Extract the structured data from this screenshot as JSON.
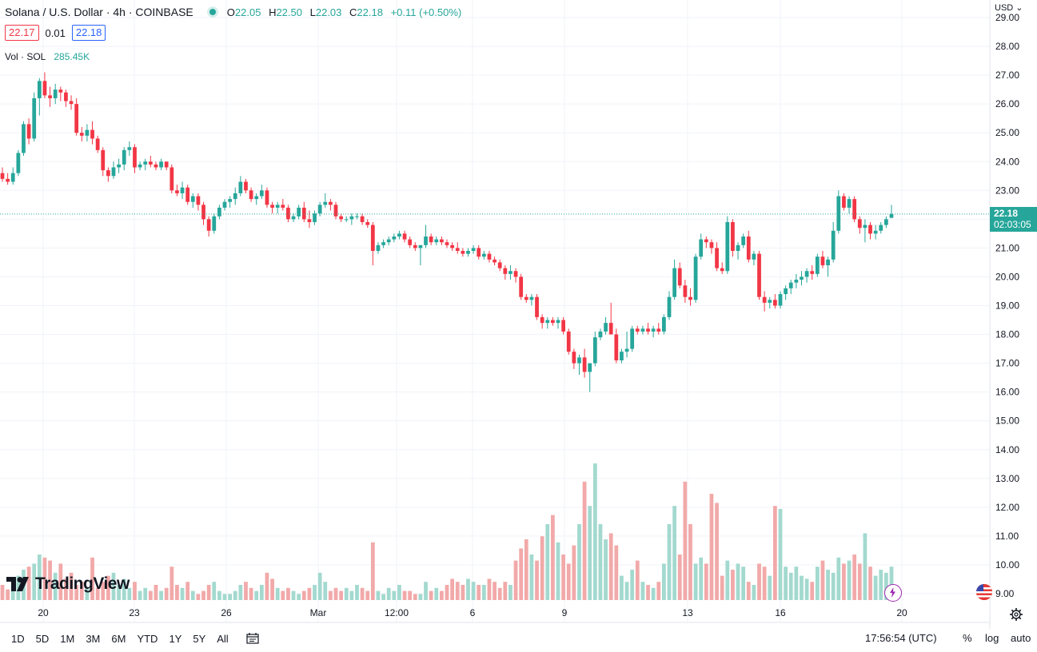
{
  "header": {
    "title": "Solana / U.S. Dollar · 4h · COINBASE",
    "ohlc": {
      "o_label": "O",
      "o": "22.05",
      "h_label": "H",
      "h": "22.50",
      "l_label": "L",
      "l": "22.03",
      "c_label": "C",
      "c": "22.18",
      "change": "+0.11 (+0.50%)"
    },
    "bid": "22.17",
    "spread": "0.01",
    "ask": "22.18",
    "vol_label": "Vol · SOL",
    "vol_value": "285.45K"
  },
  "currency": "USD",
  "last_price": {
    "price": "22.18",
    "countdown": "02:03:05"
  },
  "logo_text": "TradingView",
  "bottom_bar": {
    "ranges": [
      "1D",
      "5D",
      "1M",
      "3M",
      "6M",
      "YTD",
      "1Y",
      "5Y",
      "All"
    ],
    "clock": "17:56:54 (UTC)",
    "percent": "%",
    "log": "log",
    "auto": "auto"
  },
  "colors": {
    "up": "#26a69a",
    "down": "#f23645",
    "up_vol": "#a3d9cf",
    "down_vol": "#f2a9a9",
    "grid": "#f0f3fa"
  },
  "chart_data": {
    "type": "candlestick",
    "x_tick_labels": [
      "20",
      "23",
      "26",
      "Mar",
      "12:00",
      "6",
      "9",
      "13",
      "16",
      "20"
    ],
    "y_tick_labels": [
      "29.00",
      "28.00",
      "27.00",
      "26.00",
      "25.00",
      "24.00",
      "23.00",
      "22.00",
      "21.00",
      "20.00",
      "19.00",
      "18.00",
      "17.00",
      "16.00",
      "15.00",
      "14.00",
      "13.00",
      "12.00",
      "11.00",
      "10.00",
      "9.00"
    ],
    "ylim": [
      8.7,
      29.3
    ],
    "last_price": 22.18,
    "candles_ohlc": [
      [
        23.6,
        23.8,
        23.3,
        23.4
      ],
      [
        23.4,
        23.6,
        23.2,
        23.3
      ],
      [
        23.3,
        23.8,
        23.2,
        23.6
      ],
      [
        23.6,
        24.4,
        23.5,
        24.3
      ],
      [
        24.3,
        25.4,
        24.2,
        25.3
      ],
      [
        25.3,
        25.5,
        24.6,
        24.8
      ],
      [
        24.8,
        26.4,
        24.7,
        26.2
      ],
      [
        26.2,
        26.9,
        25.6,
        26.8
      ],
      [
        26.8,
        27.1,
        26.2,
        26.3
      ],
      [
        26.3,
        26.6,
        25.9,
        26.2
      ],
      [
        26.2,
        26.7,
        26.0,
        26.5
      ],
      [
        26.5,
        26.6,
        26.1,
        26.4
      ],
      [
        26.4,
        26.5,
        25.9,
        26.1
      ],
      [
        26.1,
        26.3,
        25.8,
        26.0
      ],
      [
        26.0,
        26.2,
        24.9,
        25.0
      ],
      [
        25.0,
        25.2,
        24.7,
        24.9
      ],
      [
        24.9,
        25.3,
        24.7,
        25.1
      ],
      [
        25.1,
        25.4,
        24.6,
        24.8
      ],
      [
        24.8,
        24.9,
        24.3,
        24.4
      ],
      [
        24.4,
        24.5,
        23.5,
        23.7
      ],
      [
        23.7,
        23.8,
        23.3,
        23.5
      ],
      [
        23.5,
        24.0,
        23.4,
        23.8
      ],
      [
        23.8,
        24.1,
        23.6,
        23.9
      ],
      [
        23.9,
        24.5,
        23.7,
        24.4
      ],
      [
        24.4,
        24.7,
        24.2,
        24.5
      ],
      [
        24.5,
        24.6,
        23.6,
        23.8
      ],
      [
        23.8,
        24.0,
        23.7,
        23.9
      ],
      [
        23.9,
        24.1,
        23.7,
        24.0
      ],
      [
        24.0,
        24.2,
        23.8,
        23.9
      ],
      [
        23.9,
        24.0,
        23.7,
        23.8
      ],
      [
        23.8,
        24.1,
        23.7,
        24.0
      ],
      [
        24.0,
        24.0,
        23.7,
        23.8
      ],
      [
        23.8,
        23.9,
        22.9,
        23.0
      ],
      [
        23.0,
        23.2,
        22.8,
        22.9
      ],
      [
        22.9,
        23.3,
        22.7,
        23.1
      ],
      [
        23.1,
        23.2,
        22.5,
        22.6
      ],
      [
        22.6,
        22.9,
        22.4,
        22.8
      ],
      [
        22.8,
        22.9,
        22.3,
        22.5
      ],
      [
        22.5,
        22.6,
        21.8,
        22.0
      ],
      [
        22.0,
        22.1,
        21.4,
        21.6
      ],
      [
        21.6,
        22.2,
        21.5,
        22.1
      ],
      [
        22.1,
        22.5,
        22.0,
        22.4
      ],
      [
        22.4,
        22.7,
        22.3,
        22.6
      ],
      [
        22.6,
        22.8,
        22.4,
        22.7
      ],
      [
        22.7,
        23.1,
        22.5,
        22.9
      ],
      [
        22.9,
        23.5,
        22.8,
        23.3
      ],
      [
        23.3,
        23.4,
        22.9,
        23.0
      ],
      [
        23.0,
        23.1,
        22.6,
        22.7
      ],
      [
        22.7,
        22.9,
        22.5,
        22.8
      ],
      [
        22.8,
        23.2,
        22.7,
        23.0
      ],
      [
        23.0,
        23.1,
        22.4,
        22.5
      ],
      [
        22.5,
        22.6,
        22.2,
        22.4
      ],
      [
        22.4,
        22.6,
        22.2,
        22.5
      ],
      [
        22.5,
        22.7,
        22.3,
        22.4
      ],
      [
        22.4,
        22.5,
        21.9,
        22.0
      ],
      [
        22.0,
        22.2,
        21.9,
        22.1
      ],
      [
        22.1,
        22.5,
        22.0,
        22.4
      ],
      [
        22.4,
        22.6,
        21.9,
        22.0
      ],
      [
        22.0,
        22.3,
        21.7,
        21.9
      ],
      [
        21.9,
        22.3,
        21.8,
        22.2
      ],
      [
        22.2,
        22.6,
        22.1,
        22.5
      ],
      [
        22.5,
        22.9,
        22.4,
        22.6
      ],
      [
        22.6,
        22.7,
        22.3,
        22.5
      ],
      [
        22.5,
        22.6,
        22.0,
        22.1
      ],
      [
        22.1,
        22.2,
        21.9,
        22.0
      ],
      [
        22.0,
        22.1,
        21.9,
        22.0
      ],
      [
        22.0,
        22.2,
        21.8,
        22.1
      ],
      [
        22.1,
        22.2,
        22.0,
        22.1
      ],
      [
        22.1,
        22.2,
        21.8,
        21.9
      ],
      [
        21.9,
        22.0,
        21.7,
        21.8
      ],
      [
        21.8,
        21.9,
        20.4,
        20.9
      ],
      [
        20.9,
        21.2,
        20.8,
        21.1
      ],
      [
        21.1,
        21.3,
        21.0,
        21.2
      ],
      [
        21.2,
        21.4,
        21.1,
        21.3
      ],
      [
        21.3,
        21.5,
        21.2,
        21.4
      ],
      [
        21.4,
        21.6,
        21.3,
        21.5
      ],
      [
        21.5,
        21.6,
        21.2,
        21.3
      ],
      [
        21.3,
        21.4,
        21.0,
        21.1
      ],
      [
        21.1,
        21.2,
        20.9,
        21.0
      ],
      [
        21.0,
        21.1,
        20.4,
        21.1
      ],
      [
        21.1,
        21.8,
        21.0,
        21.4
      ],
      [
        21.4,
        21.5,
        21.1,
        21.2
      ],
      [
        21.2,
        21.4,
        21.1,
        21.3
      ],
      [
        21.3,
        21.4,
        21.1,
        21.2
      ],
      [
        21.2,
        21.3,
        21.0,
        21.1
      ],
      [
        21.1,
        21.2,
        20.9,
        21.0
      ],
      [
        21.0,
        21.2,
        20.8,
        20.9
      ],
      [
        20.9,
        21.0,
        20.7,
        20.8
      ],
      [
        20.8,
        21.0,
        20.7,
        20.9
      ],
      [
        20.9,
        21.1,
        20.8,
        21.0
      ],
      [
        21.0,
        21.1,
        20.6,
        20.7
      ],
      [
        20.7,
        20.9,
        20.6,
        20.8
      ],
      [
        20.8,
        20.9,
        20.5,
        20.6
      ],
      [
        20.6,
        20.7,
        20.4,
        20.5
      ],
      [
        20.5,
        20.6,
        20.2,
        20.3
      ],
      [
        20.3,
        20.4,
        19.9,
        20.1
      ],
      [
        20.1,
        20.4,
        19.9,
        20.2
      ],
      [
        20.2,
        20.3,
        19.8,
        20.0
      ],
      [
        20.0,
        20.1,
        19.2,
        19.3
      ],
      [
        19.3,
        19.4,
        19.1,
        19.2
      ],
      [
        19.2,
        19.4,
        19.0,
        19.3
      ],
      [
        19.3,
        19.4,
        18.5,
        18.6
      ],
      [
        18.6,
        18.7,
        18.2,
        18.4
      ],
      [
        18.4,
        18.6,
        18.2,
        18.5
      ],
      [
        18.5,
        18.6,
        18.3,
        18.4
      ],
      [
        18.4,
        18.6,
        18.2,
        18.5
      ],
      [
        18.5,
        18.6,
        18.0,
        18.1
      ],
      [
        18.1,
        18.2,
        17.3,
        17.4
      ],
      [
        17.4,
        17.5,
        16.8,
        17.0
      ],
      [
        17.0,
        17.3,
        16.6,
        17.2
      ],
      [
        17.2,
        17.5,
        16.5,
        16.7
      ],
      [
        16.7,
        17.0,
        16.0,
        17.0
      ],
      [
        17.0,
        18.1,
        16.9,
        17.9
      ],
      [
        17.9,
        18.2,
        17.8,
        18.1
      ],
      [
        18.1,
        18.6,
        18.0,
        18.4
      ],
      [
        18.4,
        19.1,
        18.2,
        18.0
      ],
      [
        18.0,
        18.2,
        17.0,
        17.1
      ],
      [
        17.1,
        17.5,
        17.0,
        17.4
      ],
      [
        17.4,
        18.1,
        17.2,
        17.5
      ],
      [
        17.5,
        18.3,
        17.4,
        18.2
      ],
      [
        18.2,
        18.3,
        18.0,
        18.1
      ],
      [
        18.1,
        18.3,
        18.0,
        18.2
      ],
      [
        18.2,
        18.4,
        18.0,
        18.1
      ],
      [
        18.1,
        18.3,
        17.9,
        18.2
      ],
      [
        18.2,
        18.4,
        18.0,
        18.1
      ],
      [
        18.1,
        18.7,
        18.0,
        18.6
      ],
      [
        18.6,
        19.5,
        18.5,
        19.3
      ],
      [
        19.3,
        20.6,
        19.2,
        20.3
      ],
      [
        20.3,
        20.5,
        19.6,
        19.7
      ],
      [
        19.7,
        19.9,
        19.1,
        19.3
      ],
      [
        19.3,
        19.6,
        19.0,
        19.2
      ],
      [
        19.2,
        20.8,
        19.1,
        20.7
      ],
      [
        20.7,
        21.5,
        20.6,
        21.3
      ],
      [
        21.3,
        21.4,
        21.0,
        21.2
      ],
      [
        21.2,
        21.3,
        20.8,
        21.0
      ],
      [
        21.0,
        21.2,
        20.2,
        20.3
      ],
      [
        20.3,
        20.5,
        20.1,
        20.2
      ],
      [
        20.2,
        22.1,
        20.1,
        21.9
      ],
      [
        21.9,
        22.0,
        20.7,
        20.9
      ],
      [
        20.9,
        21.2,
        20.6,
        21.1
      ],
      [
        21.1,
        21.5,
        21.0,
        21.4
      ],
      [
        21.4,
        21.6,
        20.5,
        20.6
      ],
      [
        20.6,
        20.9,
        20.4,
        20.8
      ],
      [
        20.8,
        20.9,
        19.2,
        19.3
      ],
      [
        19.3,
        19.5,
        18.8,
        19.1
      ],
      [
        19.1,
        19.3,
        18.9,
        19.2
      ],
      [
        19.2,
        19.4,
        18.9,
        19.0
      ],
      [
        19.0,
        19.5,
        18.9,
        19.4
      ],
      [
        19.4,
        19.7,
        19.2,
        19.6
      ],
      [
        19.6,
        19.9,
        19.4,
        19.8
      ],
      [
        19.8,
        20.1,
        19.6,
        19.9
      ],
      [
        19.9,
        20.2,
        19.7,
        20.0
      ],
      [
        20.0,
        20.3,
        19.8,
        20.2
      ],
      [
        20.2,
        20.4,
        19.9,
        20.1
      ],
      [
        20.1,
        20.8,
        20.0,
        20.7
      ],
      [
        20.7,
        20.9,
        20.3,
        20.4
      ],
      [
        20.4,
        20.7,
        20.0,
        20.6
      ],
      [
        20.6,
        21.9,
        20.5,
        21.6
      ],
      [
        21.6,
        23.0,
        21.5,
        22.8
      ],
      [
        22.8,
        22.9,
        22.3,
        22.4
      ],
      [
        22.4,
        22.8,
        22.2,
        22.7
      ],
      [
        22.7,
        22.8,
        21.9,
        22.0
      ],
      [
        22.0,
        22.1,
        21.5,
        21.7
      ],
      [
        21.7,
        22.0,
        21.2,
        21.8
      ],
      [
        21.8,
        21.9,
        21.3,
        21.5
      ],
      [
        21.5,
        21.8,
        21.3,
        21.6
      ],
      [
        21.6,
        21.9,
        21.5,
        21.8
      ],
      [
        21.8,
        22.1,
        21.7,
        22.0
      ],
      [
        22.05,
        22.5,
        22.03,
        22.18
      ]
    ],
    "volume_level_axis": [
      0.5,
      0.35,
      0.6,
      0.8,
      1.0,
      1.1,
      1.2,
      1.5,
      1.4,
      1.3,
      0.9,
      1.2,
      0.7,
      0.9,
      0.5,
      0.6,
      0.4,
      1.4,
      0.4,
      0.6,
      0.8,
      0.9,
      0.5,
      0.7,
      0.4,
      0.6,
      0.3,
      0.4,
      0.3,
      0.5,
      0.3,
      0.4,
      1.1,
      0.5,
      0.4,
      0.6,
      0.3,
      0.2,
      0.3,
      0.5,
      0.6,
      0.3,
      0.2,
      0.2,
      0.3,
      0.5,
      0.6,
      0.4,
      0.3,
      0.5,
      0.9,
      0.7,
      0.4,
      0.3,
      0.4,
      0.3,
      0.2,
      0.3,
      0.4,
      0.5,
      0.9,
      0.6,
      0.3,
      0.4,
      0.3,
      0.4,
      0.3,
      0.5,
      0.4,
      0.3,
      1.9,
      0.3,
      0.2,
      0.4,
      0.3,
      0.5,
      0.3,
      0.3,
      0.2,
      0.2,
      0.6,
      0.3,
      0.4,
      0.3,
      0.5,
      0.7,
      0.6,
      0.5,
      0.7,
      0.6,
      0.5,
      0.5,
      0.7,
      0.6,
      0.4,
      0.6,
      0.5,
      1.3,
      1.7,
      2.0,
      1.5,
      1.3,
      2.1,
      2.5,
      2.8,
      1.9,
      1.5,
      1.2,
      1.8,
      2.5,
      3.9,
      3.1,
      4.5,
      2.5,
      2.0,
      2.2,
      1.8,
      0.8,
      0.6,
      1.0,
      1.3,
      0.6,
      0.5,
      0.4,
      0.6,
      1.2,
      2.5,
      3.1,
      1.5,
      3.9,
      2.5,
      1.2,
      1.4,
      1.2,
      3.5,
      3.2,
      0.8,
      1.3,
      1.0,
      1.2,
      1.1,
      0.6,
      0.5,
      1.2,
      1.1,
      0.8,
      3.1,
      3.0,
      1.1,
      0.9,
      1.1,
      0.8,
      0.7,
      0.6,
      1.1,
      1.3,
      1.0,
      0.9,
      1.4,
      1.2,
      1.3,
      1.5,
      1.2,
      2.2,
      1.1,
      0.8,
      1.0,
      0.9,
      1.1,
      0.6,
      0.4,
      0.5,
      0.5,
      0.5,
      0.5,
      0.6
    ]
  }
}
